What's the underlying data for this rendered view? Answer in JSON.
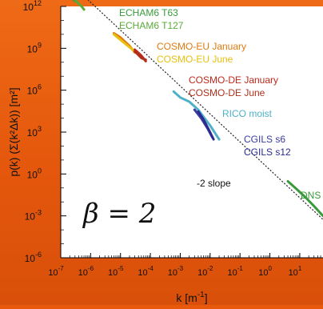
{
  "chart_data": {
    "type": "line",
    "xlabel_main": "k [m",
    "xlabel_sup": "-1",
    "xlabel_tail": "]",
    "ylabel": "p(k) (Σ(k²Δk)) [m²]",
    "x_scale": "log",
    "y_scale": "log",
    "xlim": [
      1e-07,
      60
    ],
    "ylim": [
      1e-06,
      1000000000000.0
    ],
    "x_ticks": [
      {
        "exp": -7,
        "label": "10",
        "sup": "-7"
      },
      {
        "exp": -6,
        "label": "10",
        "sup": "-6"
      },
      {
        "exp": -5,
        "label": "10",
        "sup": "-5"
      },
      {
        "exp": -4,
        "label": "10",
        "sup": "-4"
      },
      {
        "exp": -3,
        "label": "10",
        "sup": "-3"
      },
      {
        "exp": -2,
        "label": "10",
        "sup": "-2"
      },
      {
        "exp": -1,
        "label": "10",
        "sup": "-1"
      },
      {
        "exp": 0,
        "label": "10",
        "sup": "0"
      },
      {
        "exp": 1,
        "label": "10",
        "sup": "1"
      }
    ],
    "y_ticks": [
      {
        "exp": 12,
        "label": "10",
        "sup": "12"
      },
      {
        "exp": 9,
        "label": "10",
        "sup": "9"
      },
      {
        "exp": 6,
        "label": "10",
        "sup": "6"
      },
      {
        "exp": 3,
        "label": "10",
        "sup": "3"
      },
      {
        "exp": 0,
        "label": "10",
        "sup": "0"
      },
      {
        "exp": -3,
        "label": "10",
        "sup": "-3"
      },
      {
        "exp": -6,
        "label": "10",
        "sup": "-6"
      }
    ],
    "reference_line": {
      "label": "-2 slope",
      "slope": -2,
      "x": [
        8e-07,
        60
      ],
      "y": [
        3100000000000.0,
        0.00055
      ]
    },
    "series": [
      {
        "name": "ECHAM6 T63",
        "color": "#3a9a3a",
        "x": [
          1.5e-07,
          1.7e-07,
          2e-07,
          2.5e-07,
          3e-07
        ],
        "y": [
          10000000000000.0,
          8000000000000.0,
          5000000000000.0,
          3500000000000.0,
          2500000000000.0
        ]
      },
      {
        "name": "ECHAM6 T127",
        "color": "#5aaa3a",
        "x": [
          3e-07,
          4e-07,
          5e-07,
          6e-07
        ],
        "y": [
          3000000000000.0,
          1500000000000.0,
          1000000000000.0,
          600000000000.0
        ]
      },
      {
        "name": "COSMO-EU January",
        "color": "#e07a10",
        "x": [
          6e-06,
          1e-05,
          2e-05,
          3e-05
        ],
        "y": [
          12000000000.0,
          6000000000.0,
          1500000000.0,
          500000000.0
        ]
      },
      {
        "name": "COSMO-EU June",
        "color": "#e8c010",
        "x": [
          6e-06,
          1e-05,
          2e-05,
          3e-05
        ],
        "y": [
          10000000000.0,
          4000000000.0,
          1200000000.0,
          600000000.0
        ]
      },
      {
        "name": "COSMO-DE January",
        "color": "#c0281c",
        "x": [
          3e-05,
          5e-05,
          7e-05
        ],
        "y": [
          800000000.0,
          300000000.0,
          120000000.0
        ]
      },
      {
        "name": "COSMO-DE June",
        "color": "#b0301c",
        "x": [
          3e-05,
          5e-05,
          7e-05
        ],
        "y": [
          600000000.0,
          200000000.0,
          150000000.0
        ]
      },
      {
        "name": "RICO moist",
        "color": "#4fb0c8",
        "x": [
          0.0006,
          0.001,
          0.002,
          0.004,
          0.007,
          0.01,
          0.02
        ],
        "y": [
          800000.0,
          300000.0,
          150000.0,
          40000.0,
          8000.0,
          3000.0,
          300.0
        ]
      },
      {
        "name": "CGILS s6",
        "color": "#3a3aa0",
        "x": [
          0.003,
          0.005,
          0.008,
          0.012
        ],
        "y": [
          40000.0,
          10000.0,
          2000.0,
          400.0
        ]
      },
      {
        "name": "CGILS s12",
        "color": "#2a2a90",
        "x": [
          0.004,
          0.006,
          0.009,
          0.013
        ],
        "y": [
          30000.0,
          8000.0,
          1500.0,
          300.0
        ]
      },
      {
        "name": "DNS",
        "color": "#3a9a3a",
        "x": [
          4,
          8,
          16,
          30,
          60
        ],
        "y": [
          0.3,
          0.08,
          0.02,
          0.005,
          0.001
        ]
      }
    ],
    "annotation": "β = 2"
  }
}
